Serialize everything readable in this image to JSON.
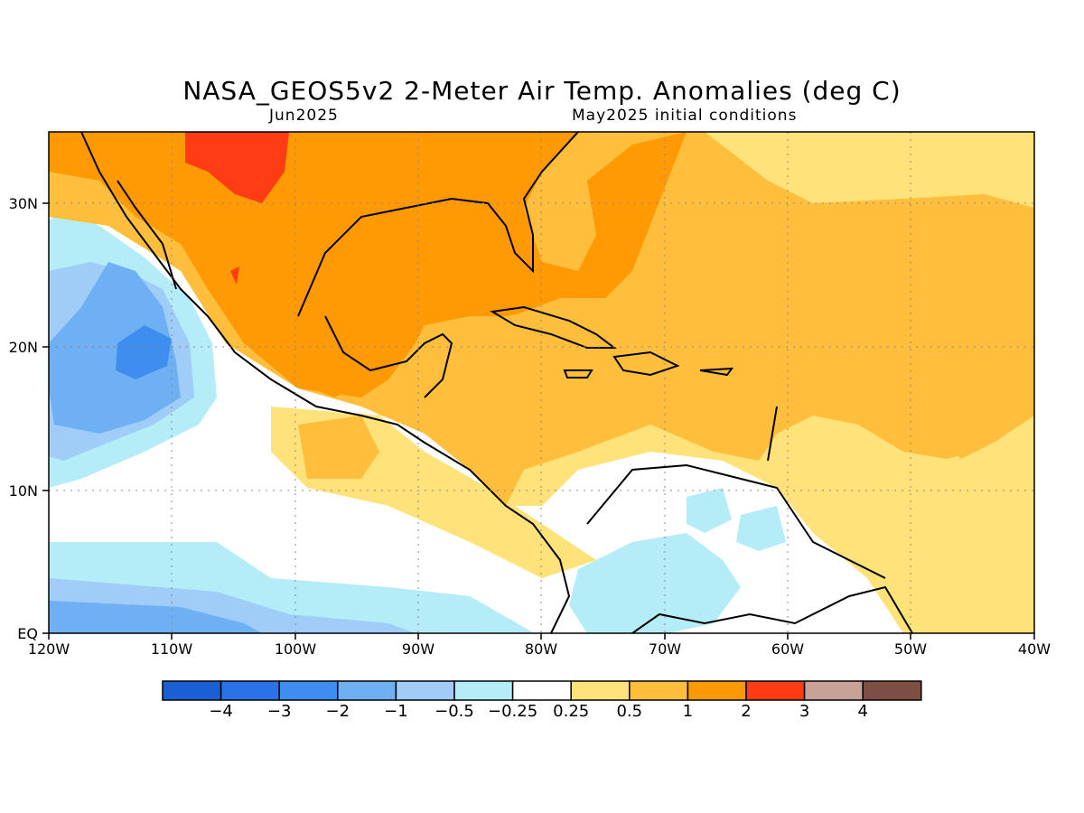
{
  "title": "NASA_GEOS5v2 2-Meter Air Temp. Anomalies (deg C)",
  "subtitle_left": "Jun2025",
  "subtitle_right": "May2025 initial conditions",
  "map": {
    "lon_labels": [
      "120W",
      "110W",
      "100W",
      "90W",
      "80W",
      "70W",
      "60W",
      "50W",
      "40W"
    ],
    "lat_labels": [
      "30N",
      "20N",
      "10N",
      "EQ"
    ],
    "gridlines": "dotted"
  },
  "colorbar": {
    "labels": [
      "-4",
      "-3",
      "-2",
      "-1",
      "-0.5",
      "-0.25",
      "0.25",
      "0.5",
      "1",
      "2",
      "3",
      "4"
    ],
    "colors": [
      "#1a5fd4",
      "#2a72e6",
      "#3e8ef0",
      "#6fb0f5",
      "#9fcdf8",
      "#b4ecf8",
      "#ffffff",
      "#ffe27a",
      "#ffbe3c",
      "#ff9a05",
      "#ff3c14",
      "#c8a296",
      "#7d4e44"
    ]
  }
}
